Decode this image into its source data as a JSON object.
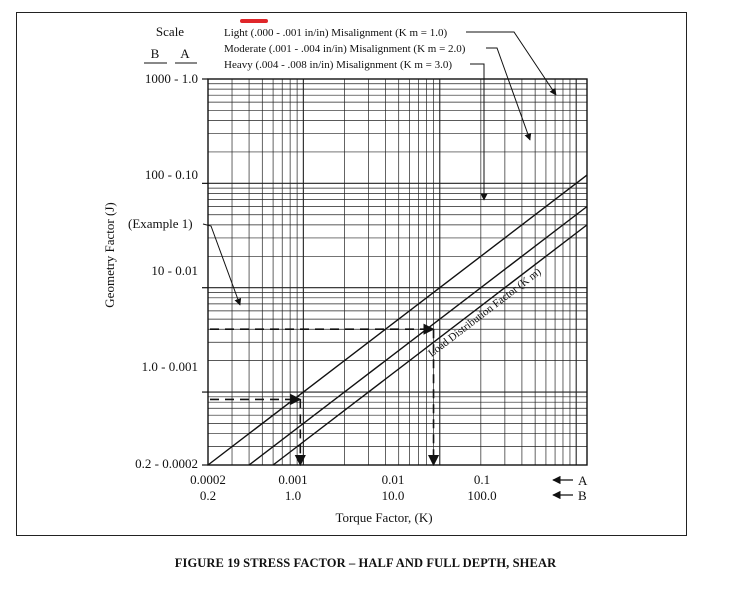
{
  "chart_data": {
    "type": "line",
    "scale_header": "Scale",
    "scale_columns": [
      "B",
      "A"
    ],
    "y_axis": {
      "label": "Geometry Factor (J)",
      "log": true,
      "ticks": [
        {
          "label_B": "1000",
          "label_A": "1.0",
          "text": "1000 - 1.0"
        },
        {
          "label_B": "100",
          "label_A": "0.10",
          "text": "100 - 0.10"
        },
        {
          "label_B": "10",
          "label_A": "0.01",
          "text": "10 - 0.01"
        },
        {
          "label_B": "1.0",
          "label_A": "0.001",
          "text": "1.0 - 0.001"
        },
        {
          "label_B": "0.2",
          "label_A": "0.0002",
          "text": "0.2 - 0.0002"
        }
      ],
      "range_A": [
        0.0002,
        1.0
      ]
    },
    "x_axis": {
      "label": "Torque Factor, (K)",
      "log": true,
      "ticks_A": [
        "0.0002",
        "0.001",
        "0.01",
        "0.1"
      ],
      "ticks_B": [
        "0.2",
        "1.0",
        "10.0",
        "100.0"
      ],
      "scale_A_marker": "A",
      "scale_B_marker": "B",
      "range_A": [
        0.0002,
        0.12
      ]
    },
    "grid": true,
    "series": [
      {
        "name": "Light (.000 - .001 in/in) Misalignment (K m = 1.0)",
        "km": 1.0,
        "x": [
          0.0002,
          0.12
        ],
        "y": [
          0.0002,
          0.12
        ]
      },
      {
        "name": "Moderate (.001 - .004 in/in) Misalignment (K m = 2.0)",
        "km": 2.0,
        "x": [
          0.0002,
          0.12
        ],
        "y": [
          0.0001,
          0.06
        ]
      },
      {
        "name": "Heavy (.004 - .008 in/in) Misalignment (K m = 3.0)",
        "km": 3.0,
        "x": [
          0.0002,
          0.12
        ],
        "y": [
          6.67e-05,
          0.04
        ]
      }
    ],
    "line_label": "Load Distribution Factor (K m)",
    "annotations": [
      {
        "text": "(Example 1)"
      }
    ],
    "example_paths": [
      {
        "y_level": 0.004,
        "x_intersect": 0.009
      },
      {
        "y_level": 0.00085,
        "x_intersect": 0.00095
      }
    ]
  },
  "caption": "FIGURE 19    STRESS FACTOR – HALF AND FULL DEPTH, SHEAR"
}
